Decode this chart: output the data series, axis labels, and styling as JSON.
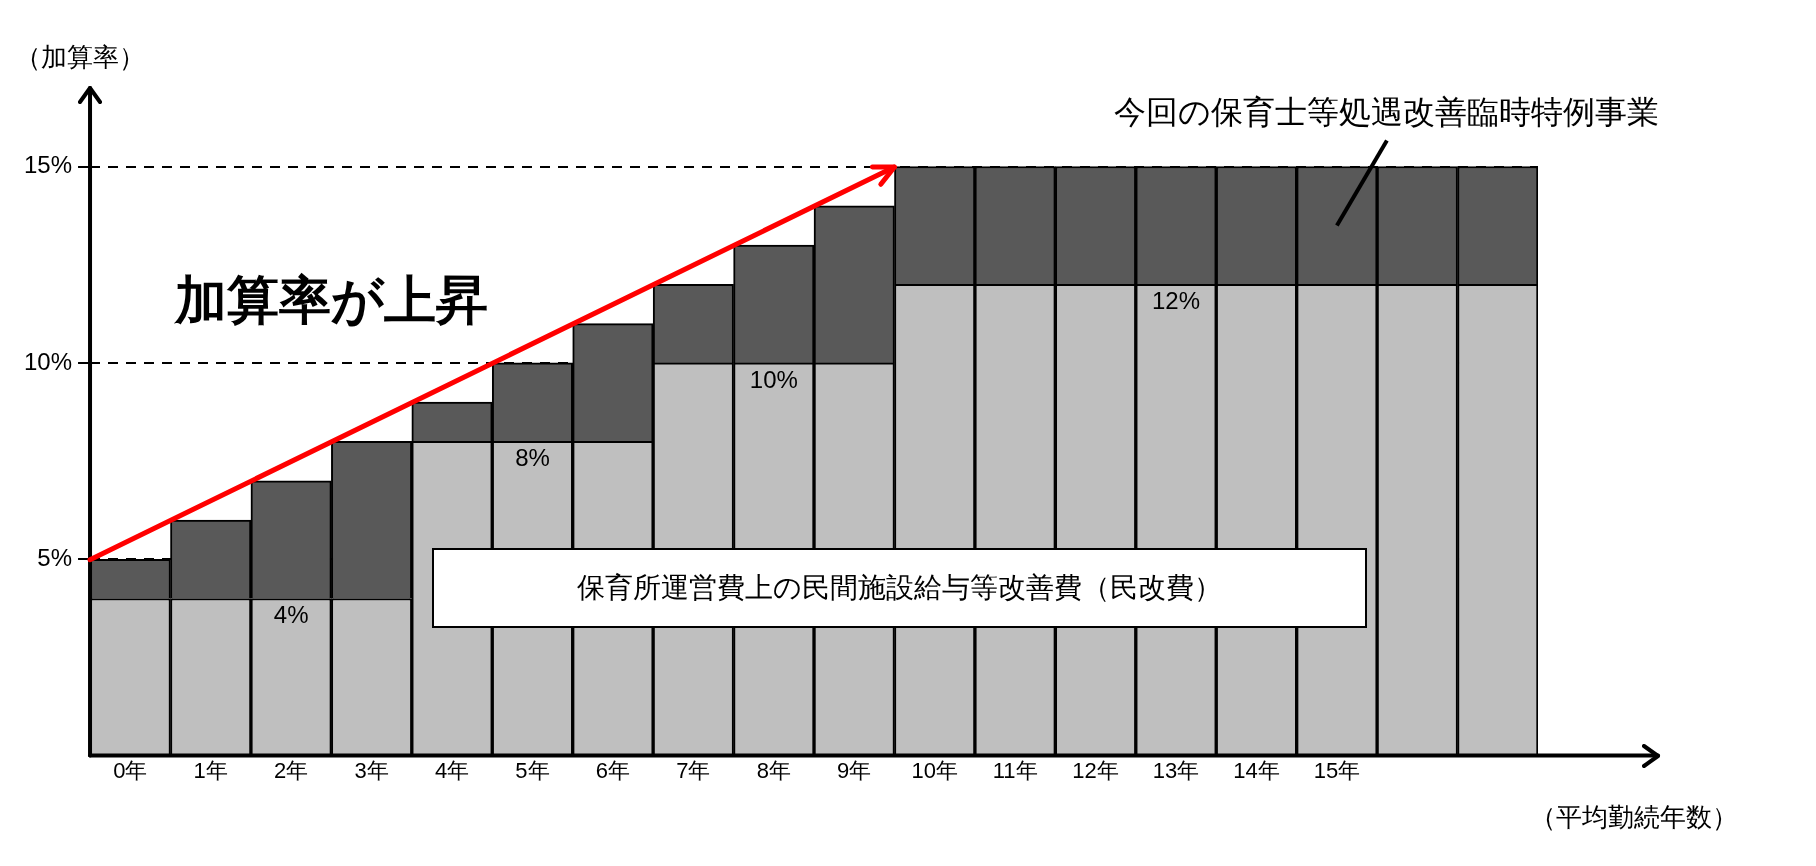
{
  "chart_data": {
    "type": "bar",
    "stacked": true,
    "categories": [
      "0年",
      "1年",
      "2年",
      "3年",
      "4年",
      "5年",
      "6年",
      "7年",
      "8年",
      "9年",
      "10年",
      "11年",
      "12年",
      "13年",
      "14年",
      "15年",
      null,
      null
    ],
    "series": [
      {
        "name": "保育所運営費上の民間施設給与等改善費（民改費）",
        "color": "#bfbfbf",
        "values": [
          4,
          4,
          4,
          4,
          8,
          8,
          8,
          10,
          10,
          10,
          12,
          12,
          12,
          12,
          12,
          12,
          12,
          12
        ],
        "value_labels": [
          null,
          null,
          "4%",
          null,
          null,
          "8%",
          null,
          null,
          "10%",
          null,
          null,
          null,
          null,
          "12%",
          null,
          null,
          null,
          null
        ]
      },
      {
        "name": "今回の保育士等処遇改善臨時特例事業",
        "color": "#595959",
        "values": [
          1,
          2,
          3,
          4,
          1,
          2,
          3,
          2,
          3,
          4,
          3,
          3,
          3,
          3,
          3,
          3,
          3,
          3
        ]
      }
    ],
    "ylim": [
      0,
      17
    ],
    "yticks": [
      {
        "value": 5,
        "label": "5%"
      },
      {
        "value": 10,
        "label": "10%"
      },
      {
        "value": 15,
        "label": "15%"
      }
    ],
    "grid": "y",
    "legend": false,
    "ylabel": "（加算率）",
    "xlabel": "（平均勤続年数）",
    "annotations": [
      "加算率が上昇"
    ]
  }
}
